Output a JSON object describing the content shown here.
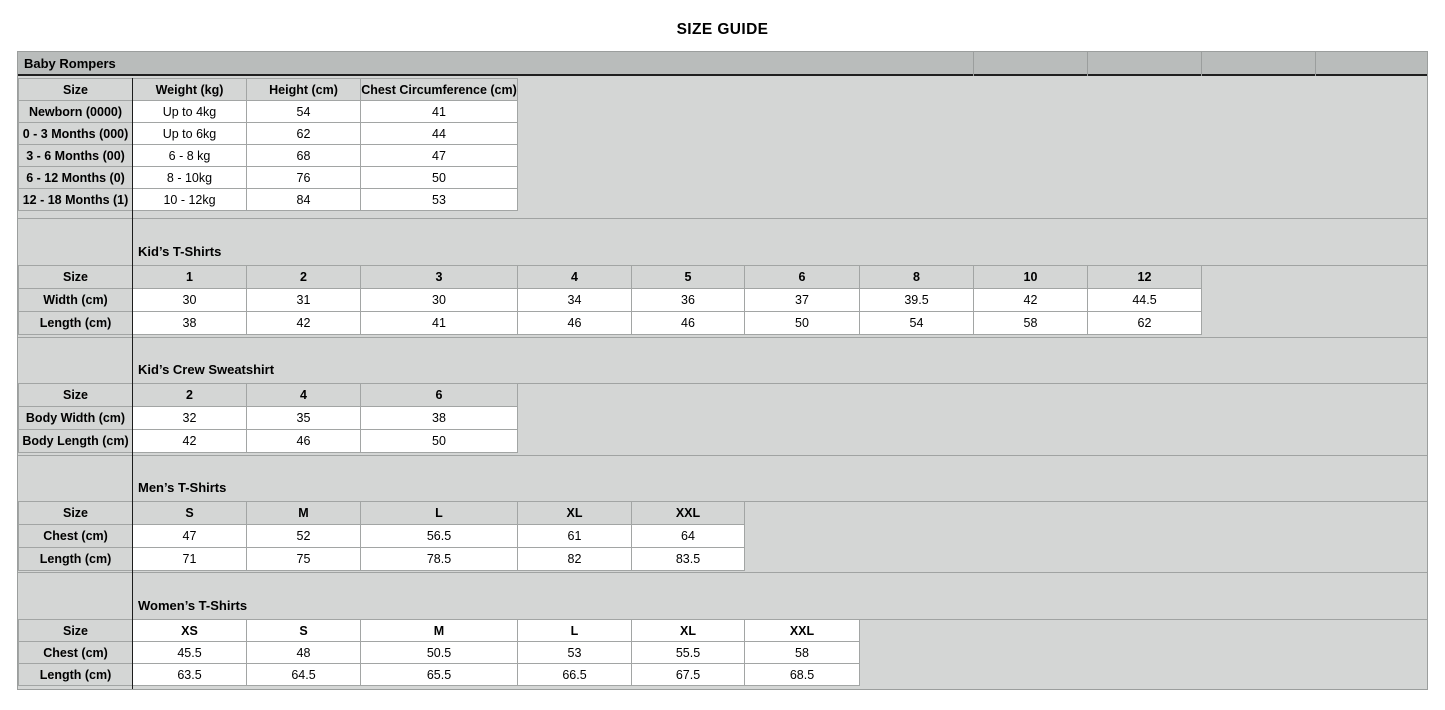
{
  "page_title": "SIZE GUIDE",
  "colors": {
    "section_header_gray": "#b9bcbb",
    "cell_gray": "#d4d6d5",
    "border_gray": "#a2a5a4",
    "dark_border": "#1f1f1f"
  },
  "sections": [
    {
      "id": "baby-rompers",
      "title": "Baby Rompers",
      "columns": [
        "Size",
        "Weight (kg)",
        "Height (cm)",
        "Chest Circumference (cm)"
      ],
      "rows": [
        [
          "Newborn (0000)",
          "Up to 4kg",
          "54",
          "41"
        ],
        [
          "0 - 3 Months (000)",
          "Up to 6kg",
          "62",
          "44"
        ],
        [
          "3 - 6 Months (00)",
          "6 - 8 kg",
          "68",
          "47"
        ],
        [
          "6 - 12 Months (0)",
          "8 - 10kg",
          "76",
          "50"
        ],
        [
          "12 - 18 Months (1)",
          "10 - 12kg",
          "84",
          "53"
        ]
      ]
    },
    {
      "id": "kids-tshirts",
      "title": "Kid’s T-Shirts",
      "columns": [
        "Size",
        "1",
        "2",
        "3",
        "4",
        "5",
        "6",
        "8",
        "10",
        "12"
      ],
      "rows": [
        [
          "Width (cm)",
          "30",
          "31",
          "30",
          "34",
          "36",
          "37",
          "39.5",
          "42",
          "44.5"
        ],
        [
          "Length (cm)",
          "38",
          "42",
          "41",
          "46",
          "46",
          "50",
          "54",
          "58",
          "62"
        ]
      ]
    },
    {
      "id": "kids-crew-sweatshirt",
      "title": "Kid’s Crew Sweatshirt",
      "columns": [
        "Size",
        "2",
        "4",
        "6"
      ],
      "rows": [
        [
          "Body Width (cm)",
          "32",
          "35",
          "38"
        ],
        [
          "Body Length (cm)",
          "42",
          "46",
          "50"
        ]
      ]
    },
    {
      "id": "mens-tshirts",
      "title": "Men’s T-Shirts",
      "columns": [
        "Size",
        "S",
        "M",
        "L",
        "XL",
        "XXL"
      ],
      "rows": [
        [
          "Chest (cm)",
          "47",
          "52",
          "56.5",
          "61",
          "64"
        ],
        [
          "Length (cm)",
          "71",
          "75",
          "78.5",
          "82",
          "83.5"
        ]
      ]
    },
    {
      "id": "womens-tshirts",
      "title": "Women’s T-Shirts",
      "columns": [
        "Size",
        "XS",
        "S",
        "M",
        "L",
        "XL",
        "XXL"
      ],
      "rows": [
        [
          "Chest (cm)",
          "45.5",
          "48",
          "50.5",
          "53",
          "55.5",
          "58"
        ],
        [
          "Length (cm)",
          "63.5",
          "64.5",
          "65.5",
          "66.5",
          "67.5",
          "68.5"
        ]
      ]
    }
  ]
}
